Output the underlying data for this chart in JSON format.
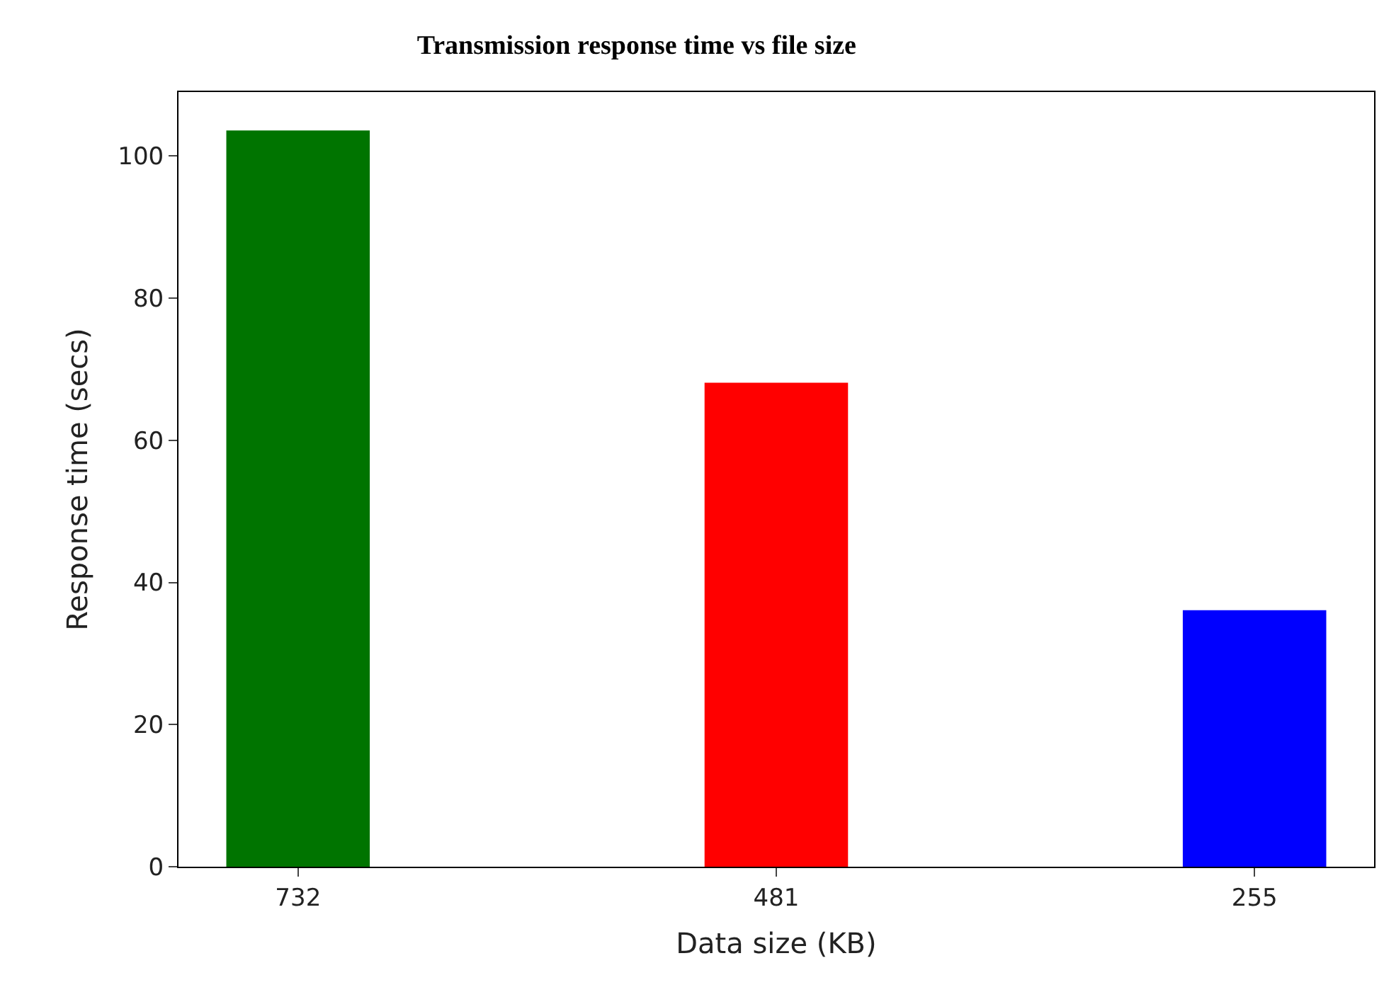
{
  "chart_data": {
    "type": "bar",
    "title": "Transmission response time vs file size",
    "xlabel": "Data size (KB)",
    "ylabel": "Response time (secs)",
    "categories": [
      "732",
      "481",
      "255"
    ],
    "values": [
      103.6,
      68.1,
      36.1
    ],
    "colors": [
      "#007400",
      "#ff0000",
      "#0000ff"
    ],
    "ylim": [
      0,
      109
    ],
    "yticks": [
      0,
      20,
      40,
      60,
      80,
      100
    ]
  }
}
